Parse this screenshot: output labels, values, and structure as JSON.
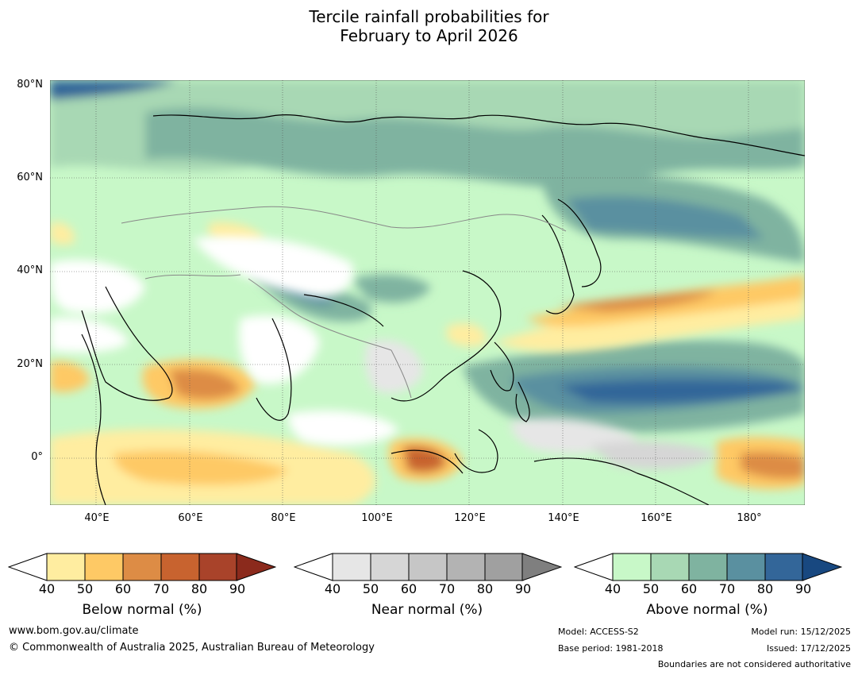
{
  "title_line1": "Tercile rainfall probabilities for",
  "title_line2": "February to April 2026",
  "lat_labels": [
    "80°N",
    "60°N",
    "40°N",
    "20°N",
    "0°"
  ],
  "lon_labels": [
    "40°E",
    "60°E",
    "80°E",
    "100°E",
    "120°E",
    "140°E",
    "160°E",
    "180°"
  ],
  "colorbars": [
    {
      "title": "Below normal (%)",
      "ticks": [
        "40",
        "50",
        "60",
        "70",
        "80",
        "90"
      ],
      "colors": [
        "#ffeda0",
        "#fec965",
        "#dd8c45",
        "#c8632f",
        "#a9432a",
        "#8b2a1c"
      ]
    },
    {
      "title": "Near normal (%)",
      "ticks": [
        "40",
        "50",
        "60",
        "70",
        "80",
        "90"
      ],
      "colors": [
        "#e6e6e6",
        "#d6d6d6",
        "#c6c6c6",
        "#b3b3b3",
        "#a0a0a0",
        "#7f7f7f"
      ]
    },
    {
      "title": "Above normal (%)",
      "ticks": [
        "40",
        "50",
        "60",
        "70",
        "80",
        "90"
      ],
      "colors": [
        "#c8f8c8",
        "#a8d8b4",
        "#7fb3a0",
        "#5a90a0",
        "#336699",
        "#184880"
      ]
    }
  ],
  "footer": {
    "website": "www.bom.gov.au/climate",
    "copyright": "© Commonwealth of Australia 2025, Australian Bureau of Meteorology",
    "model": "Model: ACCESS-S2",
    "base_period": "Base period: 1981-2018",
    "model_run": "Model run: 15/12/2025",
    "issued": "Issued: 17/12/2025",
    "boundaries": "Boundaries are not considered authoritative"
  }
}
